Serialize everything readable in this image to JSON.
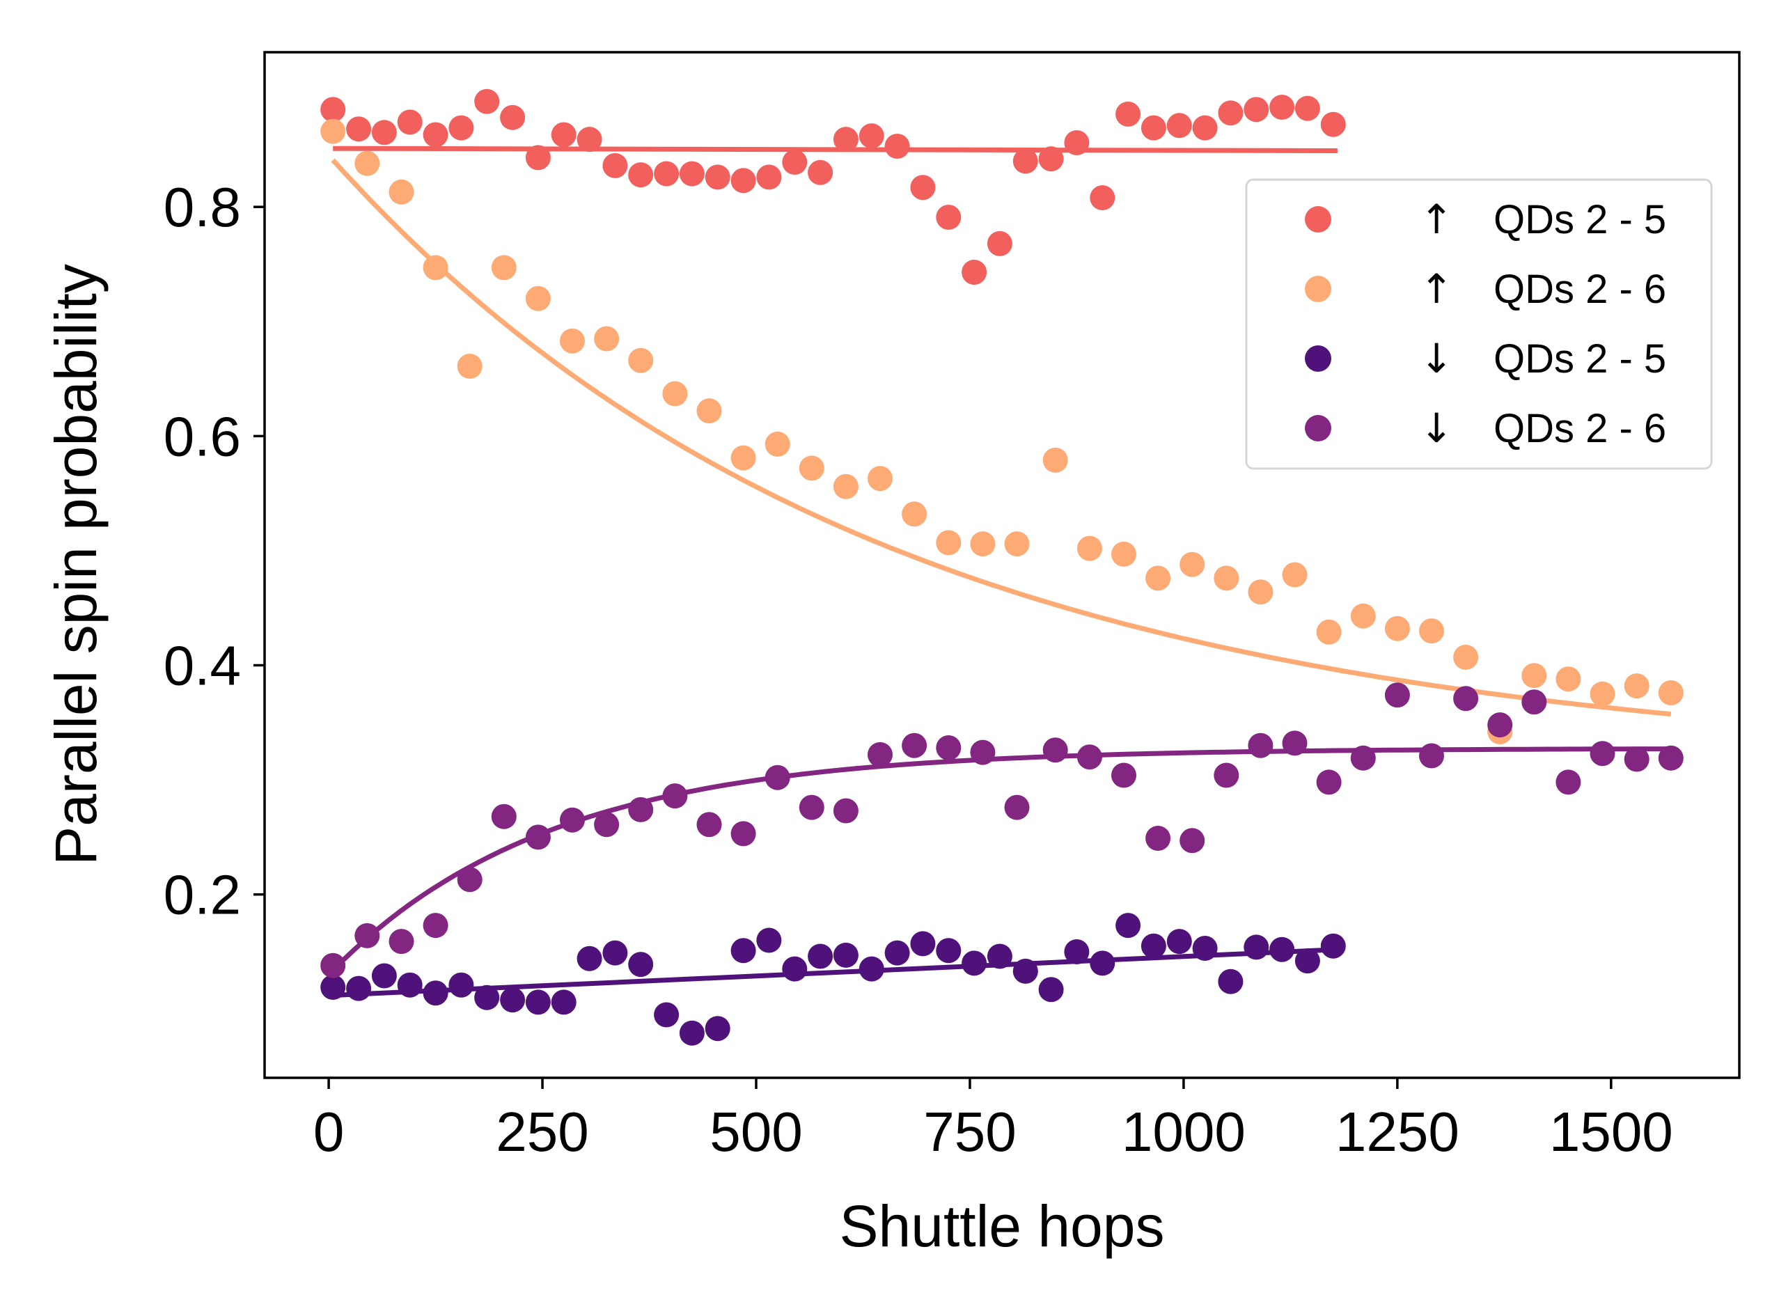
{
  "chart_data": {
    "type": "scatter",
    "title": "",
    "xlabel": "Shuttle hops",
    "ylabel": "Parallel spin probability",
    "xlim": [
      -75,
      1650
    ],
    "ylim": [
      0.04,
      0.935
    ],
    "xticks": [
      0,
      250,
      500,
      750,
      1000,
      1250,
      1500
    ],
    "xtick_labels": [
      "0",
      "250",
      "500",
      "750",
      "1000",
      "1250",
      "1500"
    ],
    "yticks": [
      0.2,
      0.4,
      0.6,
      0.8
    ],
    "ytick_labels": [
      "0.2",
      "0.4",
      "0.6",
      "0.8"
    ],
    "grid": false,
    "legend": {
      "position": "upper-right"
    },
    "series": [
      {
        "name": "QDs 2 - 5",
        "spin": "↑",
        "color": "#f1605d",
        "x": [
          5,
          35,
          65,
          95,
          125,
          155,
          185,
          215,
          245,
          275,
          305,
          335,
          365,
          395,
          425,
          455,
          485,
          515,
          545,
          575,
          605,
          635,
          665,
          695,
          725,
          755,
          785,
          815,
          845,
          875,
          905,
          935,
          965,
          995,
          1025,
          1055,
          1085,
          1115,
          1145,
          1175
        ],
        "y": [
          0.885,
          0.868,
          0.865,
          0.874,
          0.863,
          0.869,
          0.892,
          0.878,
          0.843,
          0.863,
          0.859,
          0.836,
          0.828,
          0.829,
          0.829,
          0.826,
          0.823,
          0.826,
          0.839,
          0.83,
          0.859,
          0.862,
          0.853,
          0.817,
          0.791,
          0.743,
          0.768,
          0.84,
          0.842,
          0.856,
          0.808,
          0.881,
          0.869,
          0.871,
          0.869,
          0.882,
          0.885,
          0.887,
          0.886,
          0.872
        ],
        "fit": {
          "x": [
            5,
            1180
          ],
          "y": [
            0.851,
            0.849
          ]
        }
      },
      {
        "name": "QDs 2 - 6",
        "spin": "↑",
        "color": "#feaa74",
        "x": [
          5,
          45,
          85,
          125,
          165,
          205,
          245,
          285,
          325,
          365,
          405,
          445,
          485,
          525,
          565,
          605,
          645,
          685,
          725,
          765,
          805,
          850,
          890,
          930,
          970,
          1010,
          1050,
          1090,
          1130,
          1170,
          1210,
          1250,
          1290,
          1330,
          1370,
          1410,
          1450,
          1490,
          1530,
          1570
        ],
        "y": [
          0.866,
          0.838,
          0.813,
          0.747,
          0.661,
          0.747,
          0.72,
          0.683,
          0.685,
          0.666,
          0.637,
          0.622,
          0.581,
          0.593,
          0.572,
          0.556,
          0.563,
          0.532,
          0.507,
          0.506,
          0.506,
          0.579,
          0.502,
          0.497,
          0.476,
          0.488,
          0.476,
          0.464,
          0.479,
          0.429,
          0.443,
          0.432,
          0.43,
          0.407,
          0.342,
          0.391,
          0.388,
          0.375,
          0.382,
          0.376
        ],
        "fit": {
          "A": 0.5335,
          "tau": 640,
          "C": 0.3115,
          "x0": 5,
          "x1": 1570
        }
      },
      {
        "name": "QDs 2 - 5",
        "spin": "↓",
        "color": "#4f127b",
        "x": [
          5,
          35,
          65,
          95,
          125,
          155,
          185,
          215,
          245,
          275,
          305,
          335,
          365,
          395,
          425,
          455,
          485,
          515,
          545,
          575,
          605,
          635,
          665,
          695,
          725,
          755,
          785,
          815,
          845,
          875,
          905,
          935,
          965,
          995,
          1025,
          1055,
          1085,
          1115,
          1145,
          1175
        ],
        "y": [
          0.119,
          0.118,
          0.129,
          0.121,
          0.114,
          0.121,
          0.11,
          0.108,
          0.106,
          0.106,
          0.144,
          0.149,
          0.139,
          0.095,
          0.079,
          0.083,
          0.151,
          0.16,
          0.135,
          0.146,
          0.147,
          0.135,
          0.149,
          0.157,
          0.151,
          0.14,
          0.146,
          0.133,
          0.117,
          0.15,
          0.14,
          0.173,
          0.155,
          0.159,
          0.153,
          0.124,
          0.154,
          0.152,
          0.142,
          0.155
        ],
        "fit": {
          "x": [
            5,
            1180
          ],
          "y": [
            0.112,
            0.152
          ]
        }
      },
      {
        "name": "QDs 2 - 6",
        "spin": "↓",
        "color": "#822681",
        "x": [
          5,
          45,
          85,
          125,
          165,
          205,
          245,
          285,
          325,
          365,
          405,
          445,
          485,
          525,
          565,
          605,
          645,
          685,
          725,
          765,
          805,
          850,
          890,
          930,
          970,
          1010,
          1050,
          1090,
          1130,
          1170,
          1210,
          1250,
          1290,
          1330,
          1370,
          1410,
          1450,
          1490,
          1530,
          1570
        ],
        "y": [
          0.138,
          0.164,
          0.159,
          0.173,
          0.213,
          0.268,
          0.25,
          0.265,
          0.261,
          0.274,
          0.286,
          0.261,
          0.253,
          0.302,
          0.276,
          0.273,
          0.322,
          0.33,
          0.328,
          0.324,
          0.276,
          0.326,
          0.32,
          0.304,
          0.249,
          0.247,
          0.304,
          0.33,
          0.332,
          0.298,
          0.319,
          0.374,
          0.321,
          0.371,
          0.348,
          0.368,
          0.298,
          0.323,
          0.318,
          0.319
        ],
        "fit": {
          "A": -0.1975,
          "tau": 255,
          "C": 0.3275,
          "x0": 5,
          "x1": 1570
        }
      }
    ]
  }
}
